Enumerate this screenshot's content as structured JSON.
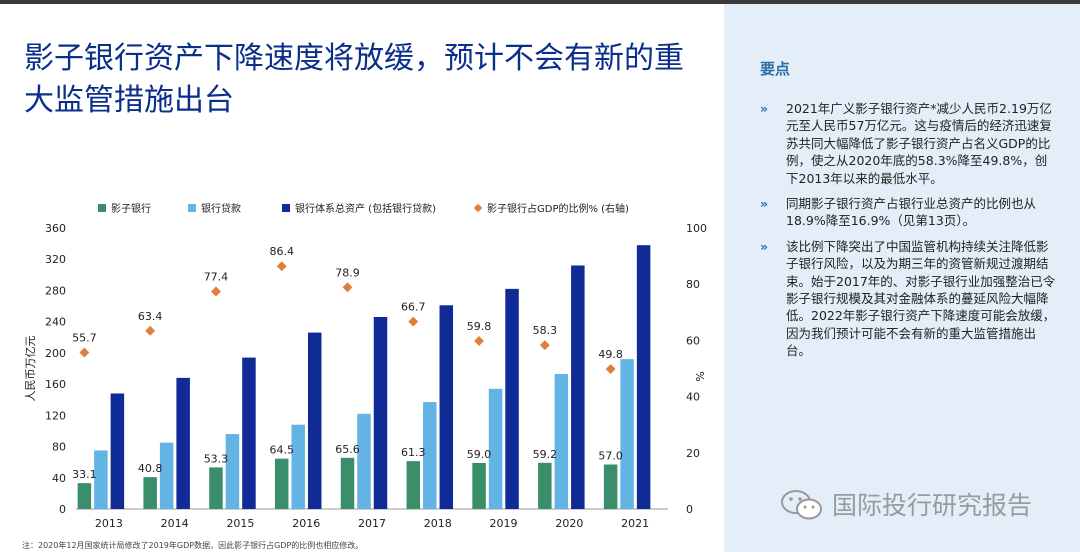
{
  "title": "影子银行资产下降速度将放缓，预计不会有新的重大监管措施出台",
  "sidebar": {
    "heading": "要点",
    "bullet_marker": "»",
    "items": [
      "2021年广义影子银行资产*减少人民币2.19万亿元至人民币57万亿元。这与疫情后的经济迅速复苏共同大幅降低了影子银行资产占名义GDP的比例，使之从2020年底的58.3%降至49.8%，创下2013年以来的最低水平。",
      "同期影子银行资产占银行业总资产的比例也从18.9%降至16.9%（见第13页）。",
      "该比例下降突出了中国监管机构持续关注降低影子银行风险，以及为期三年的资管新规过渡期结束。始于2017年的、对影子银行业加强整治已令影子银行规模及其对金融体系的蔓延风险大幅降低。2022年影子银行资产下降速度可能会放缓，因为我们预计可能不会有新的重大监管措施出台。"
    ]
  },
  "watermark": {
    "text": "国际投行研究报告",
    "icon": "wechat-icon"
  },
  "footnote": "注：2020年12月国家统计局修改了2019年GDP数据，因此影子银行占GDP的比例也相应修改。",
  "chart_data": {
    "type": "bar",
    "categories": [
      "2013",
      "2014",
      "2015",
      "2016",
      "2017",
      "2018",
      "2019",
      "2020",
      "2021"
    ],
    "series": [
      {
        "name": "影子银行",
        "color": "#3a8f6a",
        "values": [
          33.1,
          40.8,
          53.3,
          64.5,
          65.6,
          61.3,
          59.0,
          59.2,
          57.0
        ]
      },
      {
        "name": "银行贷款",
        "color": "#63b4e4",
        "values": [
          75,
          85,
          96,
          108,
          122,
          137,
          154,
          173,
          192
        ]
      },
      {
        "name": "银行体系总资产 (包括银行贷款)",
        "color": "#102a96",
        "values": [
          148,
          168,
          194,
          226,
          246,
          261,
          282,
          312,
          338
        ]
      }
    ],
    "line_series": {
      "name": "影子银行占GDP的比例% (右轴)",
      "color": "#e07e3c",
      "axis": "right",
      "values": [
        55.7,
        63.4,
        77.4,
        86.4,
        78.9,
        66.7,
        59.8,
        58.3,
        49.8
      ]
    },
    "bar_labels": [
      "33.1",
      "40.8",
      "53.3",
      "64.5",
      "65.6",
      "61.3",
      "59.0",
      "59.2",
      "57.0"
    ],
    "point_labels": [
      "55.7",
      "63.4",
      "77.4",
      "86.4",
      "78.9",
      "66.7",
      "59.8",
      "58.3",
      "49.8"
    ],
    "ylabel": "人民币万亿元",
    "y2label": "%",
    "ylim": [
      0,
      360
    ],
    "y2lim": [
      0,
      100
    ],
    "yticks": [
      "0",
      "40",
      "80",
      "120",
      "160",
      "200",
      "240",
      "280",
      "320",
      "360"
    ],
    "y2ticks": [
      "0",
      "20",
      "40",
      "60",
      "80",
      "100"
    ],
    "legend_position": "top"
  }
}
